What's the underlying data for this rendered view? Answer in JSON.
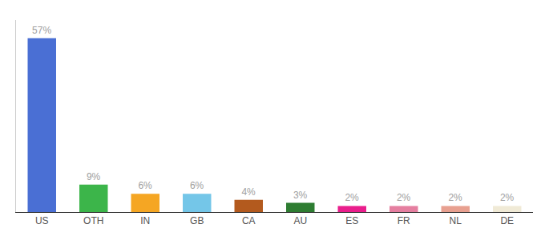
{
  "chart_data": {
    "type": "bar",
    "categories": [
      "US",
      "OTH",
      "IN",
      "GB",
      "CA",
      "AU",
      "ES",
      "FR",
      "NL",
      "DE"
    ],
    "values": [
      57,
      9,
      6,
      6,
      4,
      3,
      2,
      2,
      2,
      2
    ],
    "value_labels": [
      "57%",
      "9%",
      "6%",
      "6%",
      "4%",
      "3%",
      "2%",
      "2%",
      "2%",
      "2%"
    ],
    "colors": [
      "#4a6fd4",
      "#3cb54a",
      "#f5a623",
      "#74c6e8",
      "#b35a1e",
      "#2e7d32",
      "#e91e8c",
      "#e57fa0",
      "#e8a090",
      "#f0ead6"
    ],
    "ylim": [
      0,
      63
    ],
    "data_labels": true,
    "tick_labels": "x",
    "grid": false
  }
}
